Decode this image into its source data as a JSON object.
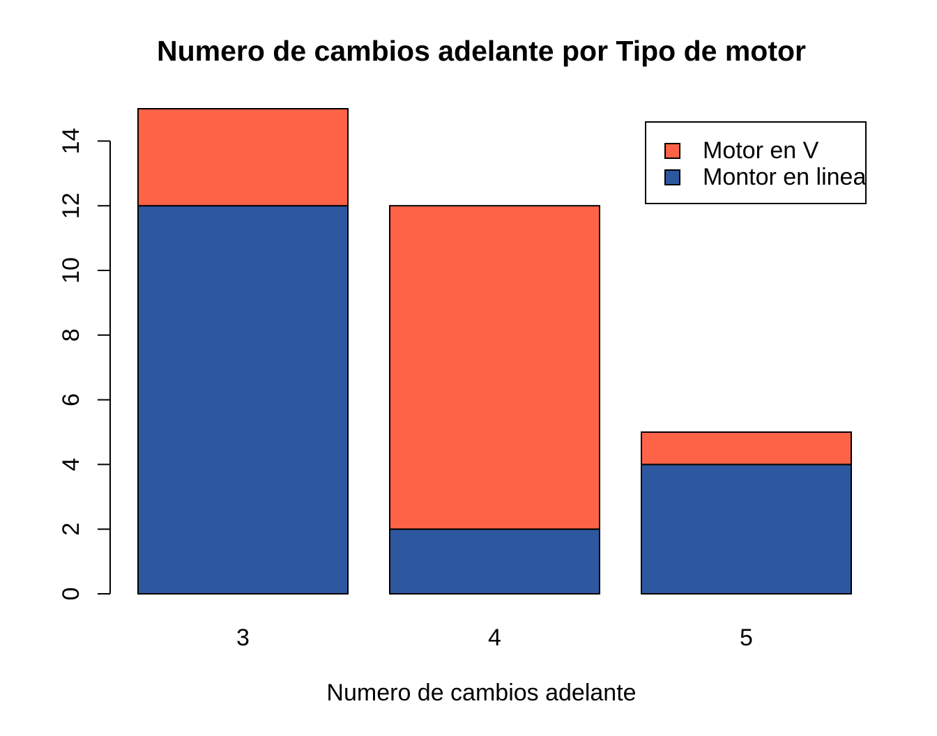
{
  "chart_data": {
    "type": "bar",
    "stacked": true,
    "title": "Numero de cambios adelante por Tipo de motor",
    "xlabel": "Numero de cambios adelante",
    "ylabel": "",
    "categories": [
      "3",
      "4",
      "5"
    ],
    "series": [
      {
        "name": "Montor en linea",
        "color": "#2D58A0",
        "values": [
          12,
          2,
          4
        ]
      },
      {
        "name": "Motor en V",
        "color": "#FF6347",
        "values": [
          3,
          10,
          1
        ]
      }
    ],
    "totals": [
      15,
      12,
      5
    ],
    "y_ticks": [
      "0",
      "2",
      "4",
      "6",
      "8",
      "10",
      "12",
      "14"
    ],
    "ylim": [
      0,
      15
    ],
    "grid": false,
    "bar_border_color": "#000000",
    "axis_color": "#000000",
    "background": "#FFFFFF",
    "legend": {
      "position": "top-right",
      "entries": [
        {
          "label": "Motor en V",
          "color": "#FF6347"
        },
        {
          "label": "Montor en linea",
          "color": "#2D58A0"
        }
      ]
    }
  }
}
